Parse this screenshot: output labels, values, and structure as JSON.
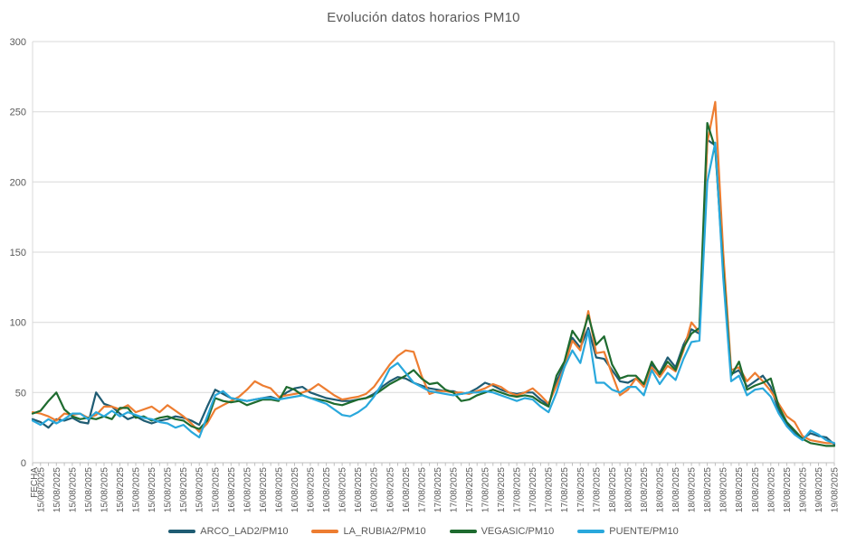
{
  "chart_data": {
    "type": "line",
    "title": "Evolución datos horarios PM10",
    "x_axis_title": "FECHA",
    "ylabel": "",
    "ylim": [
      0,
      300
    ],
    "y_ticks": [
      0,
      50,
      100,
      150,
      200,
      250,
      300
    ],
    "grid": "horizontal",
    "legend_position": "bottom",
    "x_label_interval": 2,
    "axis_color": "#BFBFBF",
    "gridline_color": "#D9D9D9",
    "text_color": "#595959",
    "categories": [
      "15/08/2025",
      "15/08/2025",
      "15/08/2025",
      "15/08/2025",
      "15/08/2025",
      "15/08/2025",
      "15/08/2025",
      "15/08/2025",
      "15/08/2025",
      "15/08/2025",
      "15/08/2025",
      "15/08/2025",
      "15/08/2025",
      "15/08/2025",
      "15/08/2025",
      "15/08/2025",
      "15/08/2025",
      "15/08/2025",
      "15/08/2025",
      "15/08/2025",
      "15/08/2025",
      "15/08/2025",
      "15/08/2025",
      "15/08/2025",
      "16/08/2025",
      "16/08/2025",
      "16/08/2025",
      "16/08/2025",
      "16/08/2025",
      "16/08/2025",
      "16/08/2025",
      "16/08/2025",
      "16/08/2025",
      "16/08/2025",
      "16/08/2025",
      "16/08/2025",
      "16/08/2025",
      "16/08/2025",
      "16/08/2025",
      "16/08/2025",
      "16/08/2025",
      "16/08/2025",
      "16/08/2025",
      "16/08/2025",
      "16/08/2025",
      "16/08/2025",
      "16/08/2025",
      "16/08/2025",
      "17/08/2025",
      "17/08/2025",
      "17/08/2025",
      "17/08/2025",
      "17/08/2025",
      "17/08/2025",
      "17/08/2025",
      "17/08/2025",
      "17/08/2025",
      "17/08/2025",
      "17/08/2025",
      "17/08/2025",
      "17/08/2025",
      "17/08/2025",
      "17/08/2025",
      "17/08/2025",
      "17/08/2025",
      "17/08/2025",
      "17/08/2025",
      "17/08/2025",
      "17/08/2025",
      "17/08/2025",
      "17/08/2025",
      "17/08/2025",
      "18/08/2025",
      "18/08/2025",
      "18/08/2025",
      "18/08/2025",
      "18/08/2025",
      "18/08/2025",
      "18/08/2025",
      "18/08/2025",
      "18/08/2025",
      "18/08/2025",
      "18/08/2025",
      "18/08/2025",
      "18/08/2025",
      "18/08/2025",
      "18/08/2025",
      "18/08/2025",
      "18/08/2025",
      "18/08/2025",
      "18/08/2025",
      "18/08/2025",
      "18/08/2025",
      "18/08/2025",
      "18/08/2025",
      "18/08/2025",
      "19/08/2025",
      "19/08/2025",
      "19/08/2025",
      "19/08/2025",
      "19/08/2025",
      "19/08/2025"
    ],
    "series": [
      {
        "name": "ARCO_LAD2/PM10",
        "color": "#1F5C73",
        "values": [
          31,
          29,
          25,
          31,
          30,
          32,
          29,
          28,
          50,
          42,
          40,
          35,
          31,
          33,
          30,
          28,
          30,
          31,
          33,
          32,
          30,
          27,
          40,
          52,
          49,
          46,
          45,
          44,
          45,
          46,
          47,
          45,
          50,
          53,
          54,
          50,
          48,
          46,
          45,
          44,
          44,
          45,
          46,
          49,
          54,
          58,
          61,
          60,
          57,
          55,
          53,
          52,
          51,
          51,
          49,
          50,
          53,
          57,
          55,
          52,
          50,
          49,
          50,
          50,
          45,
          41,
          58,
          70,
          89,
          82,
          96,
          75,
          74,
          66,
          58,
          57,
          60,
          56,
          70,
          64,
          75,
          68,
          84,
          95,
          92,
          230,
          226,
          140,
          63,
          66,
          54,
          58,
          62,
          54,
          37,
          28,
          21,
          17,
          21,
          19,
          18,
          13
        ]
      },
      {
        "name": "LA_RUBIA2/PM10",
        "color": "#ED7D31",
        "values": [
          36,
          35,
          33,
          30,
          35,
          34,
          35,
          32,
          34,
          40,
          40,
          38,
          41,
          36,
          38,
          40,
          36,
          41,
          37,
          33,
          28,
          22,
          28,
          38,
          41,
          44,
          47,
          52,
          58,
          55,
          53,
          47,
          48,
          49,
          50,
          52,
          56,
          52,
          48,
          45,
          46,
          47,
          49,
          54,
          62,
          70,
          76,
          80,
          79,
          62,
          49,
          51,
          51,
          50,
          50,
          49,
          51,
          53,
          56,
          54,
          50,
          48,
          50,
          53,
          48,
          42,
          55,
          68,
          87,
          80,
          108,
          78,
          79,
          63,
          48,
          52,
          60,
          54,
          68,
          61,
          69,
          65,
          80,
          100,
          93,
          228,
          257,
          150,
          66,
          68,
          58,
          64,
          58,
          51,
          42,
          33,
          29,
          19,
          16,
          15,
          14,
          14
        ]
      },
      {
        "name": "VEGASIC/PM10",
        "color": "#1E6B2F",
        "values": [
          35,
          37,
          44,
          50,
          38,
          33,
          31,
          32,
          31,
          33,
          31,
          39,
          39,
          32,
          33,
          30,
          32,
          33,
          31,
          30,
          26,
          24,
          30,
          46,
          44,
          43,
          44,
          41,
          43,
          45,
          45,
          44,
          54,
          52,
          48,
          46,
          45,
          44,
          42,
          41,
          43,
          45,
          46,
          48,
          52,
          56,
          59,
          62,
          66,
          60,
          56,
          57,
          52,
          50,
          44,
          45,
          48,
          50,
          52,
          50,
          48,
          47,
          48,
          47,
          43,
          40,
          62,
          72,
          94,
          86,
          105,
          84,
          90,
          70,
          60,
          62,
          62,
          56,
          72,
          63,
          72,
          66,
          82,
          92,
          96,
          242,
          224,
          138,
          62,
          72,
          52,
          55,
          57,
          60,
          40,
          29,
          23,
          17,
          14,
          13,
          12,
          12
        ]
      },
      {
        "name": "PUENTE/PM10",
        "color": "#29A8DC",
        "values": [
          30,
          27,
          31,
          28,
          31,
          35,
          35,
          31,
          36,
          33,
          37,
          33,
          36,
          34,
          32,
          31,
          29,
          28,
          25,
          27,
          22,
          18,
          33,
          48,
          51,
          46,
          45,
          44,
          45,
          46,
          46,
          45,
          46,
          47,
          48,
          46,
          44,
          42,
          38,
          34,
          33,
          36,
          40,
          47,
          56,
          67,
          71,
          64,
          57,
          54,
          51,
          50,
          49,
          48,
          49,
          50,
          50,
          51,
          50,
          48,
          46,
          44,
          46,
          45,
          40,
          36,
          50,
          68,
          80,
          71,
          94,
          57,
          57,
          52,
          50,
          54,
          54,
          48,
          66,
          56,
          64,
          59,
          74,
          86,
          87,
          200,
          228,
          132,
          58,
          62,
          48,
          52,
          53,
          47,
          35,
          26,
          20,
          16,
          23,
          20,
          16,
          14
        ]
      }
    ]
  }
}
